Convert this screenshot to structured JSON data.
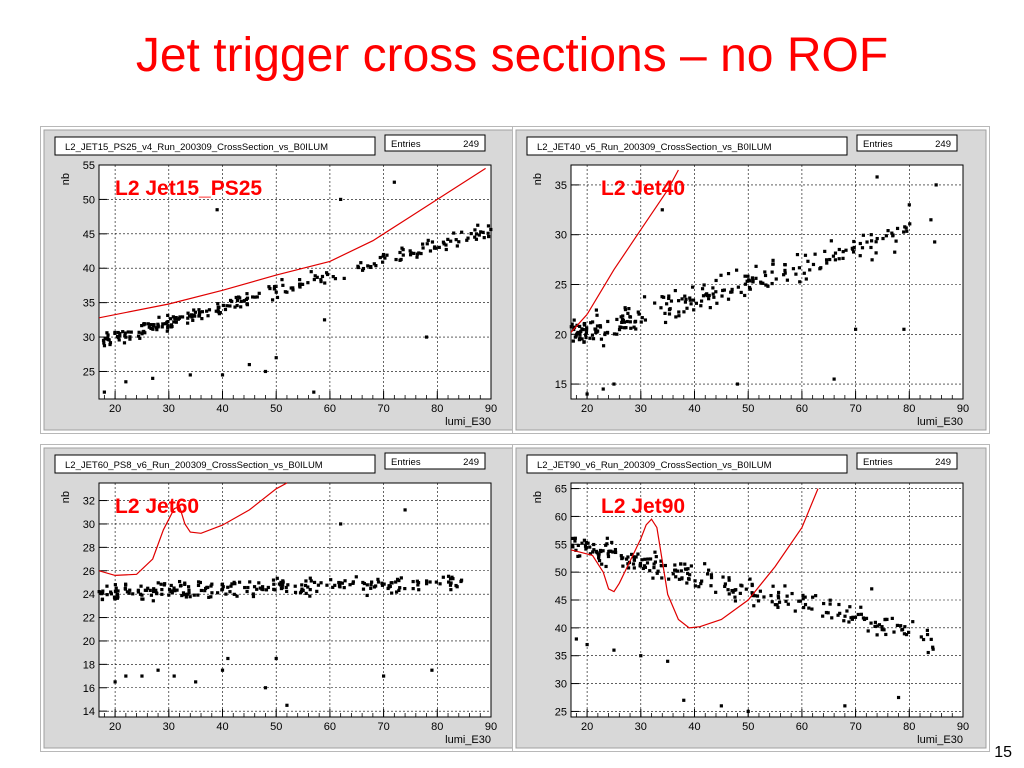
{
  "slide": {
    "title": "Jet trigger cross sections – no ROF",
    "page_number": "15"
  },
  "colors": {
    "title": "#ff0000",
    "fit": "#e00000",
    "points": "#000000",
    "frame_bg": "#d8d8d8"
  },
  "chart_data": [
    {
      "type": "scatter",
      "hist_name": "L2_JET15_PS25_v4_Run_200309_CrossSection_vs_B0ILUM",
      "stats_label": "Entries",
      "stats_value": "249",
      "annotation": "L2 Jet15_PS25",
      "xlabel": "lumi_E30",
      "ylabel": "nb",
      "xlim": [
        17,
        90
      ],
      "ylim": [
        21,
        55
      ],
      "xticks": [
        20,
        30,
        40,
        50,
        60,
        70,
        80,
        90
      ],
      "yticks": [
        25,
        30,
        35,
        40,
        45,
        50,
        55
      ],
      "grid": true,
      "gen": {
        "base": [
          17,
          29.3,
          90,
          45.5
        ],
        "noise": 1.1,
        "n": 249,
        "seed": 11,
        "outliers": [
          [
            18,
            22
          ],
          [
            22,
            23.5
          ],
          [
            27,
            24
          ],
          [
            34,
            24.5
          ],
          [
            39,
            48.5
          ],
          [
            40,
            24.5
          ],
          [
            48,
            25
          ],
          [
            57,
            22
          ],
          [
            59,
            32.5
          ],
          [
            62,
            50
          ],
          [
            72,
            52.5
          ],
          [
            78,
            30
          ],
          [
            50,
            27
          ],
          [
            45,
            26
          ]
        ]
      },
      "curve": [
        [
          17,
          32.8
        ],
        [
          30,
          34.8
        ],
        [
          40,
          36.8
        ],
        [
          50,
          39
        ],
        [
          60,
          41
        ],
        [
          68,
          44
        ],
        [
          75,
          47.5
        ],
        [
          82,
          51
        ],
        [
          89,
          54.5
        ]
      ]
    },
    {
      "type": "scatter",
      "hist_name": "L2_JET40_v5_Run_200309_CrossSection_vs_B0ILUM",
      "stats_label": "Entries",
      "stats_value": "249",
      "annotation": "L2 Jet40",
      "xlabel": "lumi_E30",
      "ylabel": "nb",
      "xlim": [
        17,
        90
      ],
      "ylim": [
        13.5,
        37
      ],
      "xticks": [
        20,
        30,
        40,
        50,
        60,
        70,
        80,
        90
      ],
      "yticks": [
        15,
        20,
        25,
        30,
        35
      ],
      "grid": true,
      "gen": {
        "base": [
          17,
          19.8,
          85,
          31
        ],
        "noise": 1.5,
        "n": 249,
        "seed": 23,
        "outliers": [
          [
            20,
            14
          ],
          [
            23,
            14.5
          ],
          [
            34,
            32.5
          ],
          [
            48,
            15
          ],
          [
            66,
            15.5
          ],
          [
            74,
            35.8
          ],
          [
            80,
            33
          ],
          [
            85,
            35
          ],
          [
            70,
            20.5
          ],
          [
            79,
            20.5
          ],
          [
            25,
            15
          ]
        ]
      },
      "curve": [
        [
          17,
          20.2
        ],
        [
          20,
          22
        ],
        [
          25,
          26.5
        ],
        [
          30,
          30.5
        ],
        [
          35,
          34.5
        ],
        [
          37,
          36.5
        ]
      ]
    },
    {
      "type": "scatter",
      "hist_name": "L2_JET60_PS8_v6_Run_200309_CrossSection_vs_B0ILUM",
      "stats_label": "Entries",
      "stats_value": "249",
      "annotation": "L2 Jet60",
      "xlabel": "lumi_E30",
      "ylabel": "nb",
      "xlim": [
        17,
        90
      ],
      "ylim": [
        13.5,
        33.5
      ],
      "xticks": [
        20,
        30,
        40,
        50,
        60,
        70,
        80,
        90
      ],
      "yticks": [
        14,
        16,
        18,
        20,
        22,
        24,
        26,
        28,
        30,
        32
      ],
      "grid": true,
      "gen": {
        "base": [
          17,
          24.2,
          85,
          25
        ],
        "noise": 0.7,
        "n": 249,
        "seed": 37,
        "outliers": [
          [
            20,
            16.5
          ],
          [
            22,
            17
          ],
          [
            25,
            17
          ],
          [
            28,
            17.5
          ],
          [
            31,
            17
          ],
          [
            35,
            16.5
          ],
          [
            40,
            17.5
          ],
          [
            41,
            18.5
          ],
          [
            48,
            16
          ],
          [
            50,
            18.5
          ],
          [
            62,
            30
          ],
          [
            70,
            17
          ],
          [
            74,
            31.2
          ],
          [
            79,
            17.5
          ],
          [
            52,
            14.5
          ]
        ]
      },
      "curve": [
        [
          17,
          26
        ],
        [
          20,
          25.6
        ],
        [
          24,
          25.7
        ],
        [
          27,
          27
        ],
        [
          29,
          29.5
        ],
        [
          31,
          31.3
        ],
        [
          32,
          31.5
        ],
        [
          33,
          30
        ],
        [
          34,
          29.3
        ],
        [
          36,
          29.2
        ],
        [
          40,
          29.9
        ],
        [
          45,
          31.2
        ],
        [
          50,
          33
        ],
        [
          52,
          33.5
        ]
      ]
    },
    {
      "type": "scatter",
      "hist_name": "L2_JET90_v6_Run_200309_CrossSection_vs_B0ILUM",
      "stats_label": "Entries",
      "stats_value": "249",
      "annotation": "L2 Jet90",
      "xlabel": "lumi_E30",
      "ylabel": "nb",
      "xlim": [
        17,
        90
      ],
      "ylim": [
        24,
        66
      ],
      "xticks": [
        20,
        30,
        40,
        50,
        60,
        70,
        80,
        90
      ],
      "yticks": [
        25,
        30,
        35,
        40,
        45,
        50,
        55,
        60,
        65
      ],
      "grid": true,
      "gen": {
        "base": [
          17,
          55,
          85,
          38
        ],
        "noise": 2.2,
        "n": 249,
        "seed": 51,
        "outliers": [
          [
            18,
            38
          ],
          [
            20,
            37
          ],
          [
            25,
            36
          ],
          [
            30,
            35
          ],
          [
            35,
            34
          ],
          [
            38,
            27
          ],
          [
            45,
            26
          ],
          [
            50,
            25
          ],
          [
            68,
            26
          ],
          [
            73,
            47
          ],
          [
            78,
            27.5
          ],
          [
            62,
            45.5
          ]
        ]
      },
      "curve": [
        [
          17,
          54
        ],
        [
          19,
          53.5
        ],
        [
          21,
          53
        ],
        [
          23,
          50
        ],
        [
          24,
          47
        ],
        [
          25,
          46.5
        ],
        [
          26,
          48
        ],
        [
          28,
          52
        ],
        [
          30,
          56
        ],
        [
          31,
          58.5
        ],
        [
          32,
          59.5
        ],
        [
          33,
          58
        ],
        [
          34,
          52
        ],
        [
          35,
          46
        ],
        [
          37,
          41.5
        ],
        [
          39,
          40
        ],
        [
          41,
          40.2
        ],
        [
          45,
          41.5
        ],
        [
          50,
          45
        ],
        [
          55,
          51
        ],
        [
          60,
          58
        ],
        [
          63,
          65
        ]
      ]
    }
  ]
}
